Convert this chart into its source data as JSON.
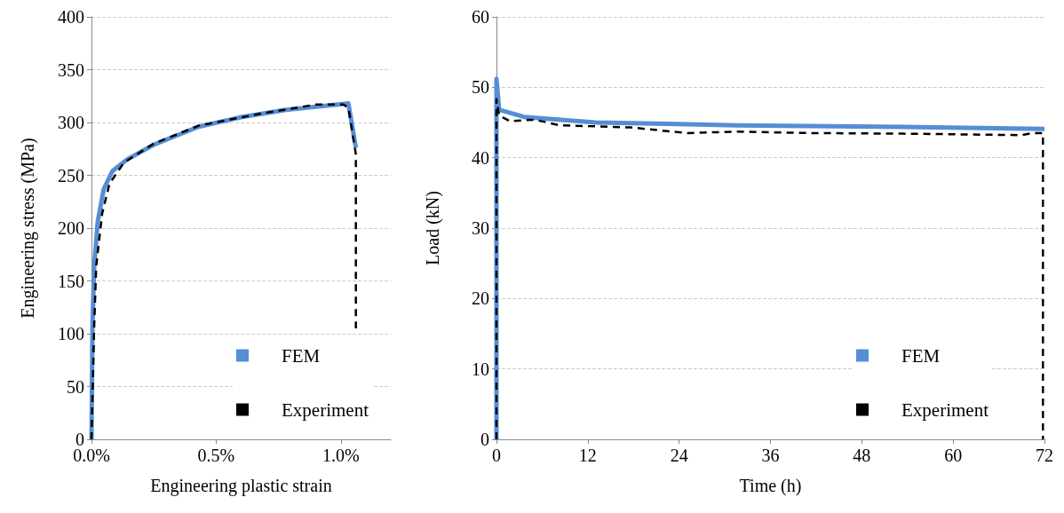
{
  "chart_data": [
    {
      "type": "line",
      "xlabel": "Engineering plastic strain",
      "ylabel": "Engineering stress (MPa)",
      "xlim": [
        0,
        1.2
      ],
      "xticks": [
        {
          "value": 0,
          "label": "0.0%"
        },
        {
          "value": 0.5,
          "label": "0.5%"
        },
        {
          "value": 1,
          "label": "1.0%"
        }
      ],
      "ylim": [
        0,
        400
      ],
      "yticks": [
        0,
        50,
        100,
        150,
        200,
        250,
        300,
        350,
        400
      ],
      "grid": "y",
      "legend": "bottom right",
      "marker": "none",
      "series": [
        {
          "name": "FEM",
          "color": "#558ed5",
          "line_style": "solid",
          "x": [
            0,
            0.004,
            0.011,
            0.025,
            0.049,
            0.084,
            0.143,
            0.25,
            0.43,
            0.6,
            0.78,
            1.03,
            1.06
          ],
          "values": [
            0,
            108,
            164,
            206,
            237,
            254,
            265,
            279,
            296,
            305,
            312,
            318,
            276
          ]
        },
        {
          "name": "Experiment",
          "color": "#000000",
          "line_style": "dashed",
          "x": [
            0,
            0.011,
            0.019,
            0.043,
            0.072,
            0.13,
            0.25,
            0.43,
            0.67,
            0.9,
            1.01,
            1.03,
            1.06,
            1.06
          ],
          "values": [
            0,
            108,
            164,
            214,
            242,
            262,
            280,
            297,
            308,
            317,
            317,
            314,
            270,
            105
          ]
        }
      ]
    },
    {
      "type": "line",
      "xlabel": "Time (h)",
      "ylabel": "Load (kN)",
      "xlim": [
        0,
        72
      ],
      "xticks": [
        0,
        12,
        24,
        36,
        48,
        60,
        72
      ],
      "ylim": [
        0,
        60
      ],
      "yticks": [
        0,
        10,
        20,
        30,
        40,
        50,
        60
      ],
      "grid": "y",
      "legend": "bottom right",
      "marker": "none",
      "series": [
        {
          "name": "FEM",
          "color": "#558ed5",
          "line_style": "solid",
          "x": [
            0,
            0,
            0.35,
            3.6,
            13,
            31.6,
            50.3,
            72
          ],
          "values": [
            0,
            51.2,
            46.8,
            45.8,
            45,
            44.6,
            44.4,
            44.1
          ]
        },
        {
          "name": "Experiment",
          "color": "#000000",
          "line_style": "dashed",
          "x": [
            0,
            0,
            0.35,
            1.75,
            5,
            8.3,
            17.6,
            25,
            31.6,
            40.9,
            54.9,
            69,
            70.4,
            71.8,
            71.8
          ],
          "values": [
            0,
            48.3,
            46,
            45.2,
            45.4,
            44.6,
            44.3,
            43.5,
            43.7,
            43.5,
            43.4,
            43.2,
            43.5,
            43.5,
            0
          ]
        }
      ]
    }
  ]
}
